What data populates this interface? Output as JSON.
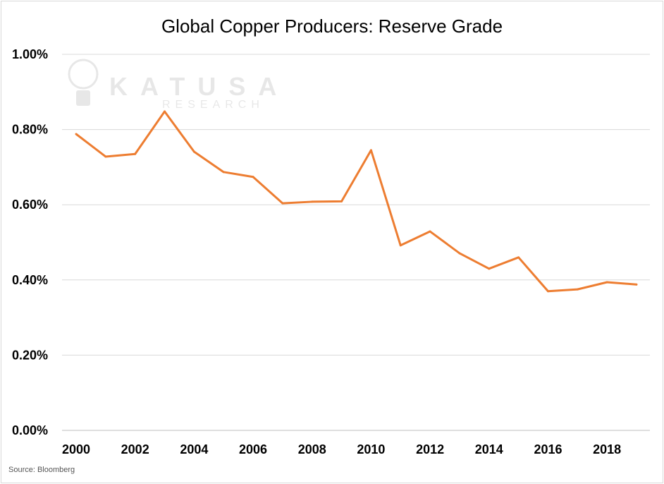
{
  "chart_data": {
    "type": "line",
    "title": "Global Copper Producers: Reserve Grade",
    "xlabel": "",
    "ylabel": "",
    "x": [
      2000,
      2001,
      2002,
      2003,
      2004,
      2005,
      2006,
      2007,
      2008,
      2009,
      2010,
      2011,
      2012,
      2013,
      2014,
      2015,
      2016,
      2017,
      2018,
      2019
    ],
    "series": [
      {
        "name": "Reserve Grade",
        "color": "#ed7d31",
        "values": [
          0.788,
          0.728,
          0.735,
          0.848,
          0.741,
          0.687,
          0.674,
          0.604,
          0.608,
          0.609,
          0.745,
          0.492,
          0.529,
          0.471,
          0.43,
          0.46,
          0.37,
          0.375,
          0.394,
          0.388
        ]
      }
    ],
    "ylim": [
      0,
      1.0
    ],
    "y_ticks": [
      0,
      0.2,
      0.4,
      0.6,
      0.8,
      1.0
    ],
    "y_tick_labels": [
      "0.00%",
      "0.20%",
      "0.40%",
      "0.60%",
      "0.80%",
      "1.00%"
    ],
    "x_ticks": [
      2000,
      2002,
      2004,
      2006,
      2008,
      2010,
      2012,
      2014,
      2016,
      2018
    ],
    "x_tick_labels": [
      "2000",
      "2002",
      "2004",
      "2006",
      "2008",
      "2010",
      "2012",
      "2014",
      "2016",
      "2018"
    ],
    "grid": true,
    "legend": "none"
  },
  "watermark": {
    "line1": "KATUSA",
    "line2": "RESEARCH"
  },
  "source": "Source: Bloomberg"
}
